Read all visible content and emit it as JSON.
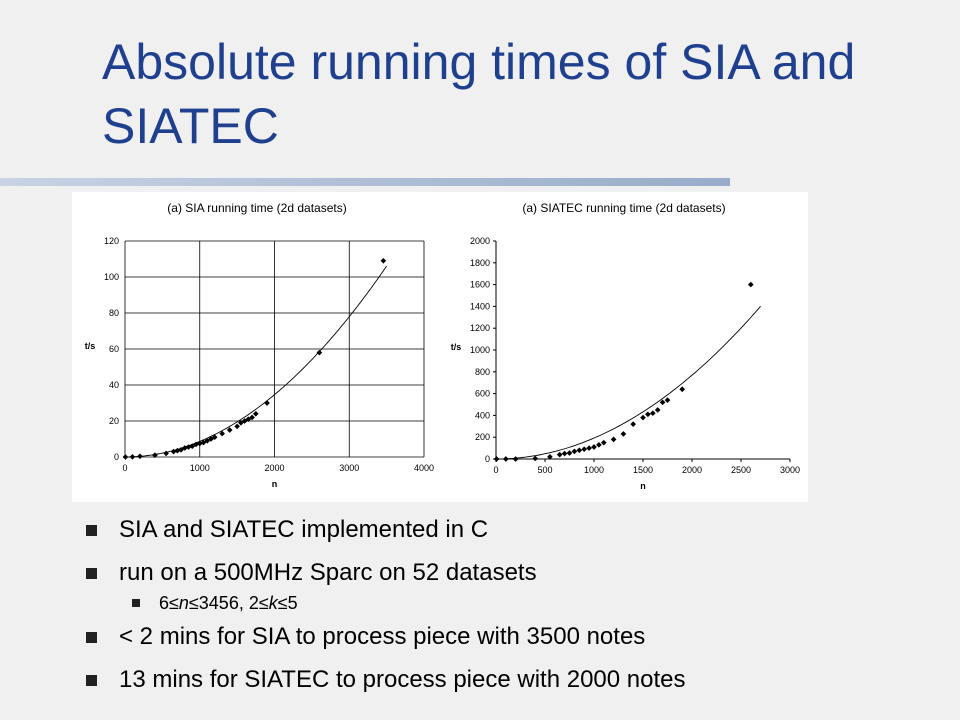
{
  "slide": {
    "title": "Absolute running times of SIA and SIATEC"
  },
  "bullets": [
    {
      "text": "SIA and SIATEC implemented in C"
    },
    {
      "text": "run on a 500MHz Sparc on 52 datasets"
    },
    {
      "sub": true,
      "parts": [
        "6≤",
        "n",
        "≤3456, 2≤",
        "k",
        "≤5"
      ]
    },
    {
      "text": "< 2 mins for SIA to process piece with 3500 notes"
    },
    {
      "text": "13 mins for SIATEC to process piece with 2000 notes"
    }
  ],
  "colors": {
    "title": "#1f3f8f",
    "background": "#f0f0f0"
  },
  "chart_data": [
    {
      "type": "scatter",
      "title": "(a) SIA running time (2d datasets)",
      "xlabel": "n",
      "ylabel": "t/s",
      "xlim": [
        0,
        4000
      ],
      "ylim": [
        0,
        120
      ],
      "xticks": [
        0,
        1000,
        2000,
        3000,
        4000
      ],
      "yticks": [
        0,
        20,
        40,
        60,
        80,
        100,
        120
      ],
      "grid": true,
      "points": [
        [
          6,
          0
        ],
        [
          100,
          0.1
        ],
        [
          200,
          0.4
        ],
        [
          400,
          1
        ],
        [
          550,
          2
        ],
        [
          650,
          3
        ],
        [
          700,
          3.5
        ],
        [
          750,
          4
        ],
        [
          800,
          5
        ],
        [
          850,
          5.5
        ],
        [
          900,
          6
        ],
        [
          950,
          7
        ],
        [
          1000,
          7.5
        ],
        [
          1050,
          8
        ],
        [
          1100,
          9
        ],
        [
          1150,
          10
        ],
        [
          1200,
          11
        ],
        [
          1300,
          13
        ],
        [
          1400,
          15
        ],
        [
          1500,
          17
        ],
        [
          1550,
          19
        ],
        [
          1600,
          20
        ],
        [
          1650,
          21
        ],
        [
          1700,
          22
        ],
        [
          1750,
          24
        ],
        [
          1900,
          30
        ],
        [
          2600,
          58
        ],
        [
          3456,
          109
        ]
      ],
      "trend_curve": true
    },
    {
      "type": "scatter",
      "title": "(a) SIATEC running time (2d datasets)",
      "xlabel": "n",
      "ylabel": "t/s",
      "xlim": [
        0,
        3000
      ],
      "ylim": [
        0,
        2000
      ],
      "xticks": [
        0,
        500,
        1000,
        1500,
        2000,
        2500,
        3000
      ],
      "yticks": [
        0,
        200,
        400,
        600,
        800,
        1000,
        1200,
        1400,
        1600,
        1800,
        2000
      ],
      "grid": false,
      "points": [
        [
          6,
          0
        ],
        [
          100,
          0
        ],
        [
          200,
          0
        ],
        [
          400,
          5
        ],
        [
          550,
          20
        ],
        [
          650,
          40
        ],
        [
          700,
          50
        ],
        [
          750,
          55
        ],
        [
          800,
          70
        ],
        [
          850,
          80
        ],
        [
          900,
          90
        ],
        [
          950,
          100
        ],
        [
          1000,
          110
        ],
        [
          1050,
          130
        ],
        [
          1100,
          150
        ],
        [
          1200,
          180
        ],
        [
          1300,
          230
        ],
        [
          1400,
          320
        ],
        [
          1500,
          380
        ],
        [
          1550,
          410
        ],
        [
          1600,
          420
        ],
        [
          1650,
          450
        ],
        [
          1700,
          520
        ],
        [
          1750,
          540
        ],
        [
          1900,
          640
        ],
        [
          2600,
          1600
        ]
      ],
      "trend_curve": true
    }
  ]
}
